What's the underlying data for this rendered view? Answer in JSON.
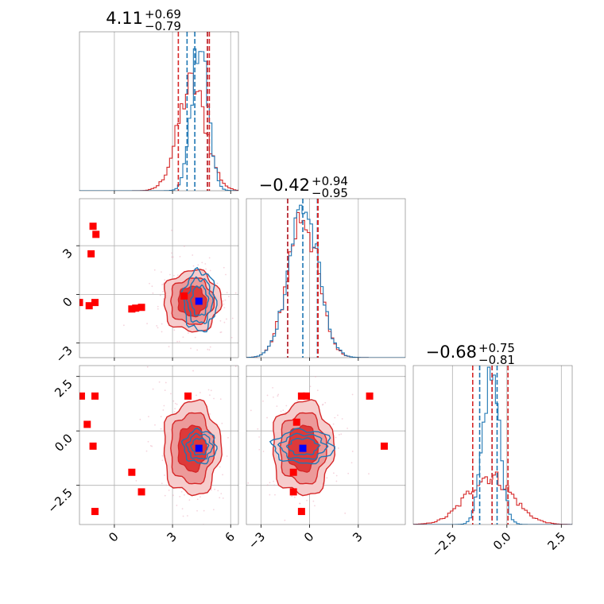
{
  "colors": {
    "red": "#d62728",
    "blue": "#1f77b4",
    "red_fill_outer": "#f6cccc",
    "red_fill_mid": "#ec9a9a",
    "red_fill_inner": "#dd3a3a",
    "grid": "#b0b0b0",
    "truth_marker": "#0000ff",
    "point_marker": "#ff0000"
  },
  "chart_data": {
    "type": "corner",
    "parameters": [
      {
        "median": "4.11",
        "plus": "+0.69",
        "minus": "−0.79",
        "range": [
          -1.8,
          6.4
        ],
        "ticks": [
          0,
          3,
          6
        ],
        "tick_labels": [
          "0",
          "3",
          "6"
        ]
      },
      {
        "median": "−0.42",
        "plus": "+0.94",
        "minus": "−0.95",
        "range": [
          -3.9,
          5.9
        ],
        "ticks": [
          -3,
          0,
          3
        ],
        "tick_labels": [
          "−3",
          "0",
          "3"
        ]
      },
      {
        "median": "−0.68",
        "plus": "+0.75",
        "minus": "−0.81",
        "range": [
          -4.3,
          3.0
        ],
        "ticks": [
          -2.5,
          0.0,
          2.5
        ],
        "tick_labels": [
          "−2.5",
          "0.0",
          "2.5"
        ]
      }
    ],
    "diag_quantiles": [
      {
        "red": [
          3.3,
          4.8,
          4.9
        ],
        "blue": [
          3.75,
          4.15,
          4.8
        ]
      },
      {
        "red": [
          -1.35,
          0.5,
          0.52
        ],
        "blue": [
          -1.36,
          -0.42,
          0.48
        ]
      },
      {
        "red": [
          -1.57,
          -0.68,
          0.05
        ],
        "blue": [
          -1.25,
          -0.68,
          -0.45
        ]
      }
    ],
    "diag_hist": [
      {
        "mu_red": 4.0,
        "sd_red": 0.72,
        "mu_blue": 4.4,
        "sd_blue": 0.42,
        "ymax_red": 0.7,
        "ymax_blue": 1.0
      },
      {
        "mu_red": -0.42,
        "sd_red": 0.92,
        "mu_blue": -0.4,
        "sd_blue": 0.92,
        "ymax_red": 0.95,
        "ymax_blue": 1.0
      },
      {
        "mu_red": -0.8,
        "sd_red": 1.05,
        "mu_blue": -0.72,
        "sd_blue": 0.38,
        "ymax_red": 0.32,
        "ymax_blue": 1.0
      }
    ],
    "truth": [
      4.36,
      -0.42,
      -0.8
    ],
    "scatter_points": {
      "p1_p0": [
        [
          -1.8,
          -0.5
        ],
        [
          -1.3,
          -0.7
        ],
        [
          -1.0,
          -0.5
        ],
        [
          -1.2,
          2.5
        ],
        [
          -1.1,
          4.2
        ],
        [
          -0.95,
          3.7
        ],
        [
          0.9,
          -0.9
        ],
        [
          1.1,
          -0.85
        ],
        [
          1.4,
          -0.8
        ],
        [
          3.6,
          -0.1
        ]
      ],
      "p2_p0": [
        [
          -1.7,
          1.6
        ],
        [
          -1.0,
          1.6
        ],
        [
          -1.4,
          0.3
        ],
        [
          -1.1,
          -0.7
        ],
        [
          0.9,
          -1.9
        ],
        [
          1.4,
          -2.8
        ],
        [
          -1.0,
          -3.7
        ],
        [
          3.8,
          1.6
        ]
      ],
      "p2_p1": [
        [
          -0.5,
          1.6
        ],
        [
          -0.2,
          1.6
        ],
        [
          -0.8,
          0.4
        ],
        [
          3.7,
          1.6
        ],
        [
          4.6,
          -0.7
        ],
        [
          -1.0,
          -1.9
        ],
        [
          -1.0,
          -2.8
        ],
        [
          -0.5,
          -3.7
        ]
      ]
    }
  }
}
